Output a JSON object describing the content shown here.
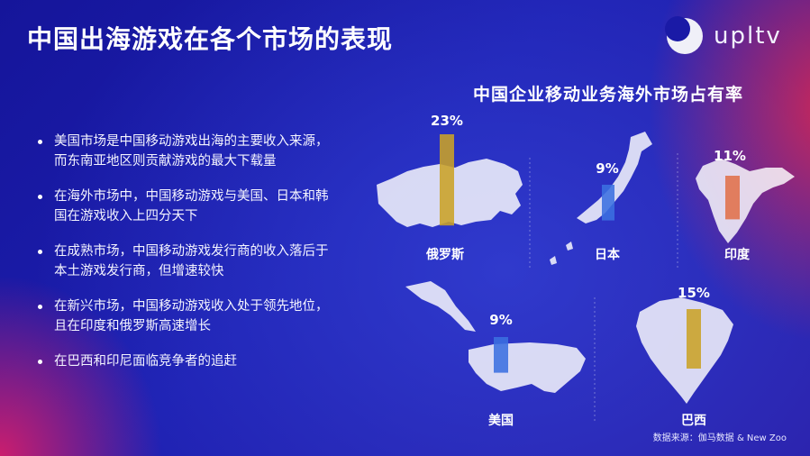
{
  "page": {
    "title": "中国出海游戏在各个市场的表现",
    "logo_text": "upltv",
    "source": "数据来源：伽马数据 & New Zoo"
  },
  "bullets": [
    "美国市场是中国移动游戏出海的主要收入来源，而东南亚地区则贡献游戏的最大下载量",
    "在海外市场中，中国移动游戏与美国、日本和韩国在游戏收入上四分天下",
    "在成熟市场，中国移动游戏发行商的收入落后于本土游戏发行商，但增速较快",
    "在新兴市场，中国移动游戏收入处于领先地位，且在印度和俄罗斯高速增长",
    "在巴西和印尼面临竞争者的追赶"
  ],
  "chart_data": {
    "type": "bar",
    "title": "中国企业移动业务海外市场占有率",
    "categories": [
      "俄罗斯",
      "日本",
      "印度",
      "美国",
      "巴西"
    ],
    "values": [
      23,
      9,
      11,
      9,
      15
    ],
    "labels": [
      "23%",
      "9%",
      "11%",
      "9%",
      "15%"
    ],
    "bar_colors": [
      "#c9a227",
      "#3b6fe0",
      "#e0704a",
      "#3b6fe0",
      "#c9a227"
    ]
  }
}
